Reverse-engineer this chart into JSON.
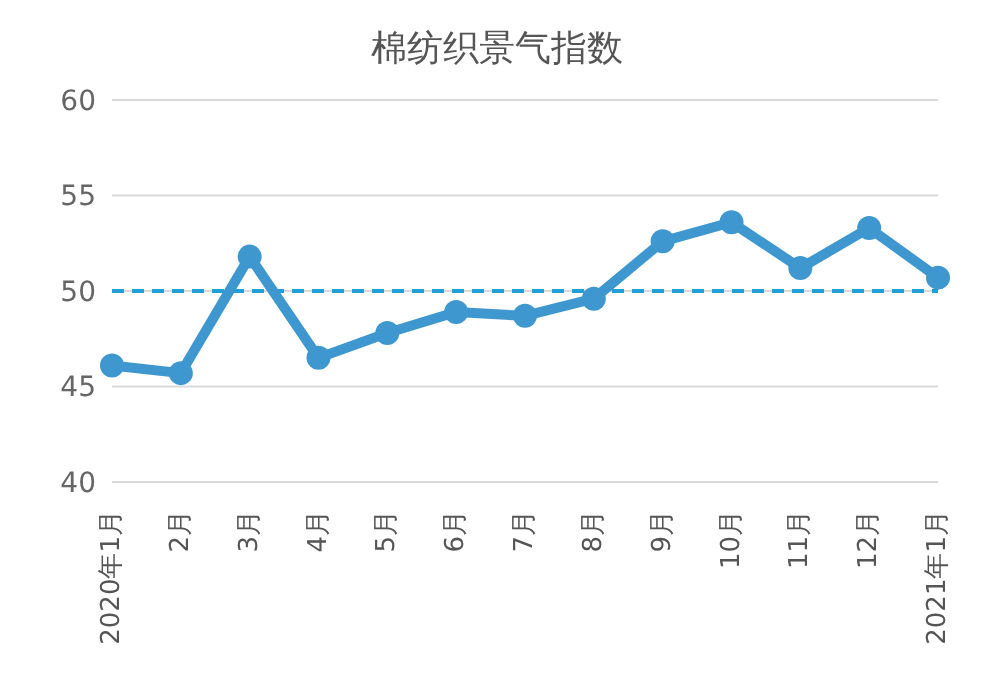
{
  "chart_data": {
    "type": "line",
    "title": "棉纺织景气指数",
    "categories": [
      "2020年1月",
      "2月",
      "3月",
      "4月",
      "5月",
      "6月",
      "7月",
      "8月",
      "9月",
      "10月",
      "11月",
      "12月",
      "2021年1月"
    ],
    "series": [
      {
        "color": "#3e97cf",
        "values": [
          46.1,
          45.7,
          51.8,
          46.5,
          47.8,
          48.9,
          48.7,
          49.6,
          52.6,
          53.6,
          51.2,
          53.3,
          50.7
        ]
      }
    ],
    "ylim": [
      40,
      60
    ],
    "yticks": [
      40,
      45,
      50,
      55,
      60
    ],
    "grid": "y",
    "legend": false,
    "marker": "circle",
    "line_style": "solid",
    "ref_lines": [
      {
        "axis": "y",
        "value": 50,
        "color": "#1fa0d8",
        "line_style": "dashed"
      }
    ]
  }
}
